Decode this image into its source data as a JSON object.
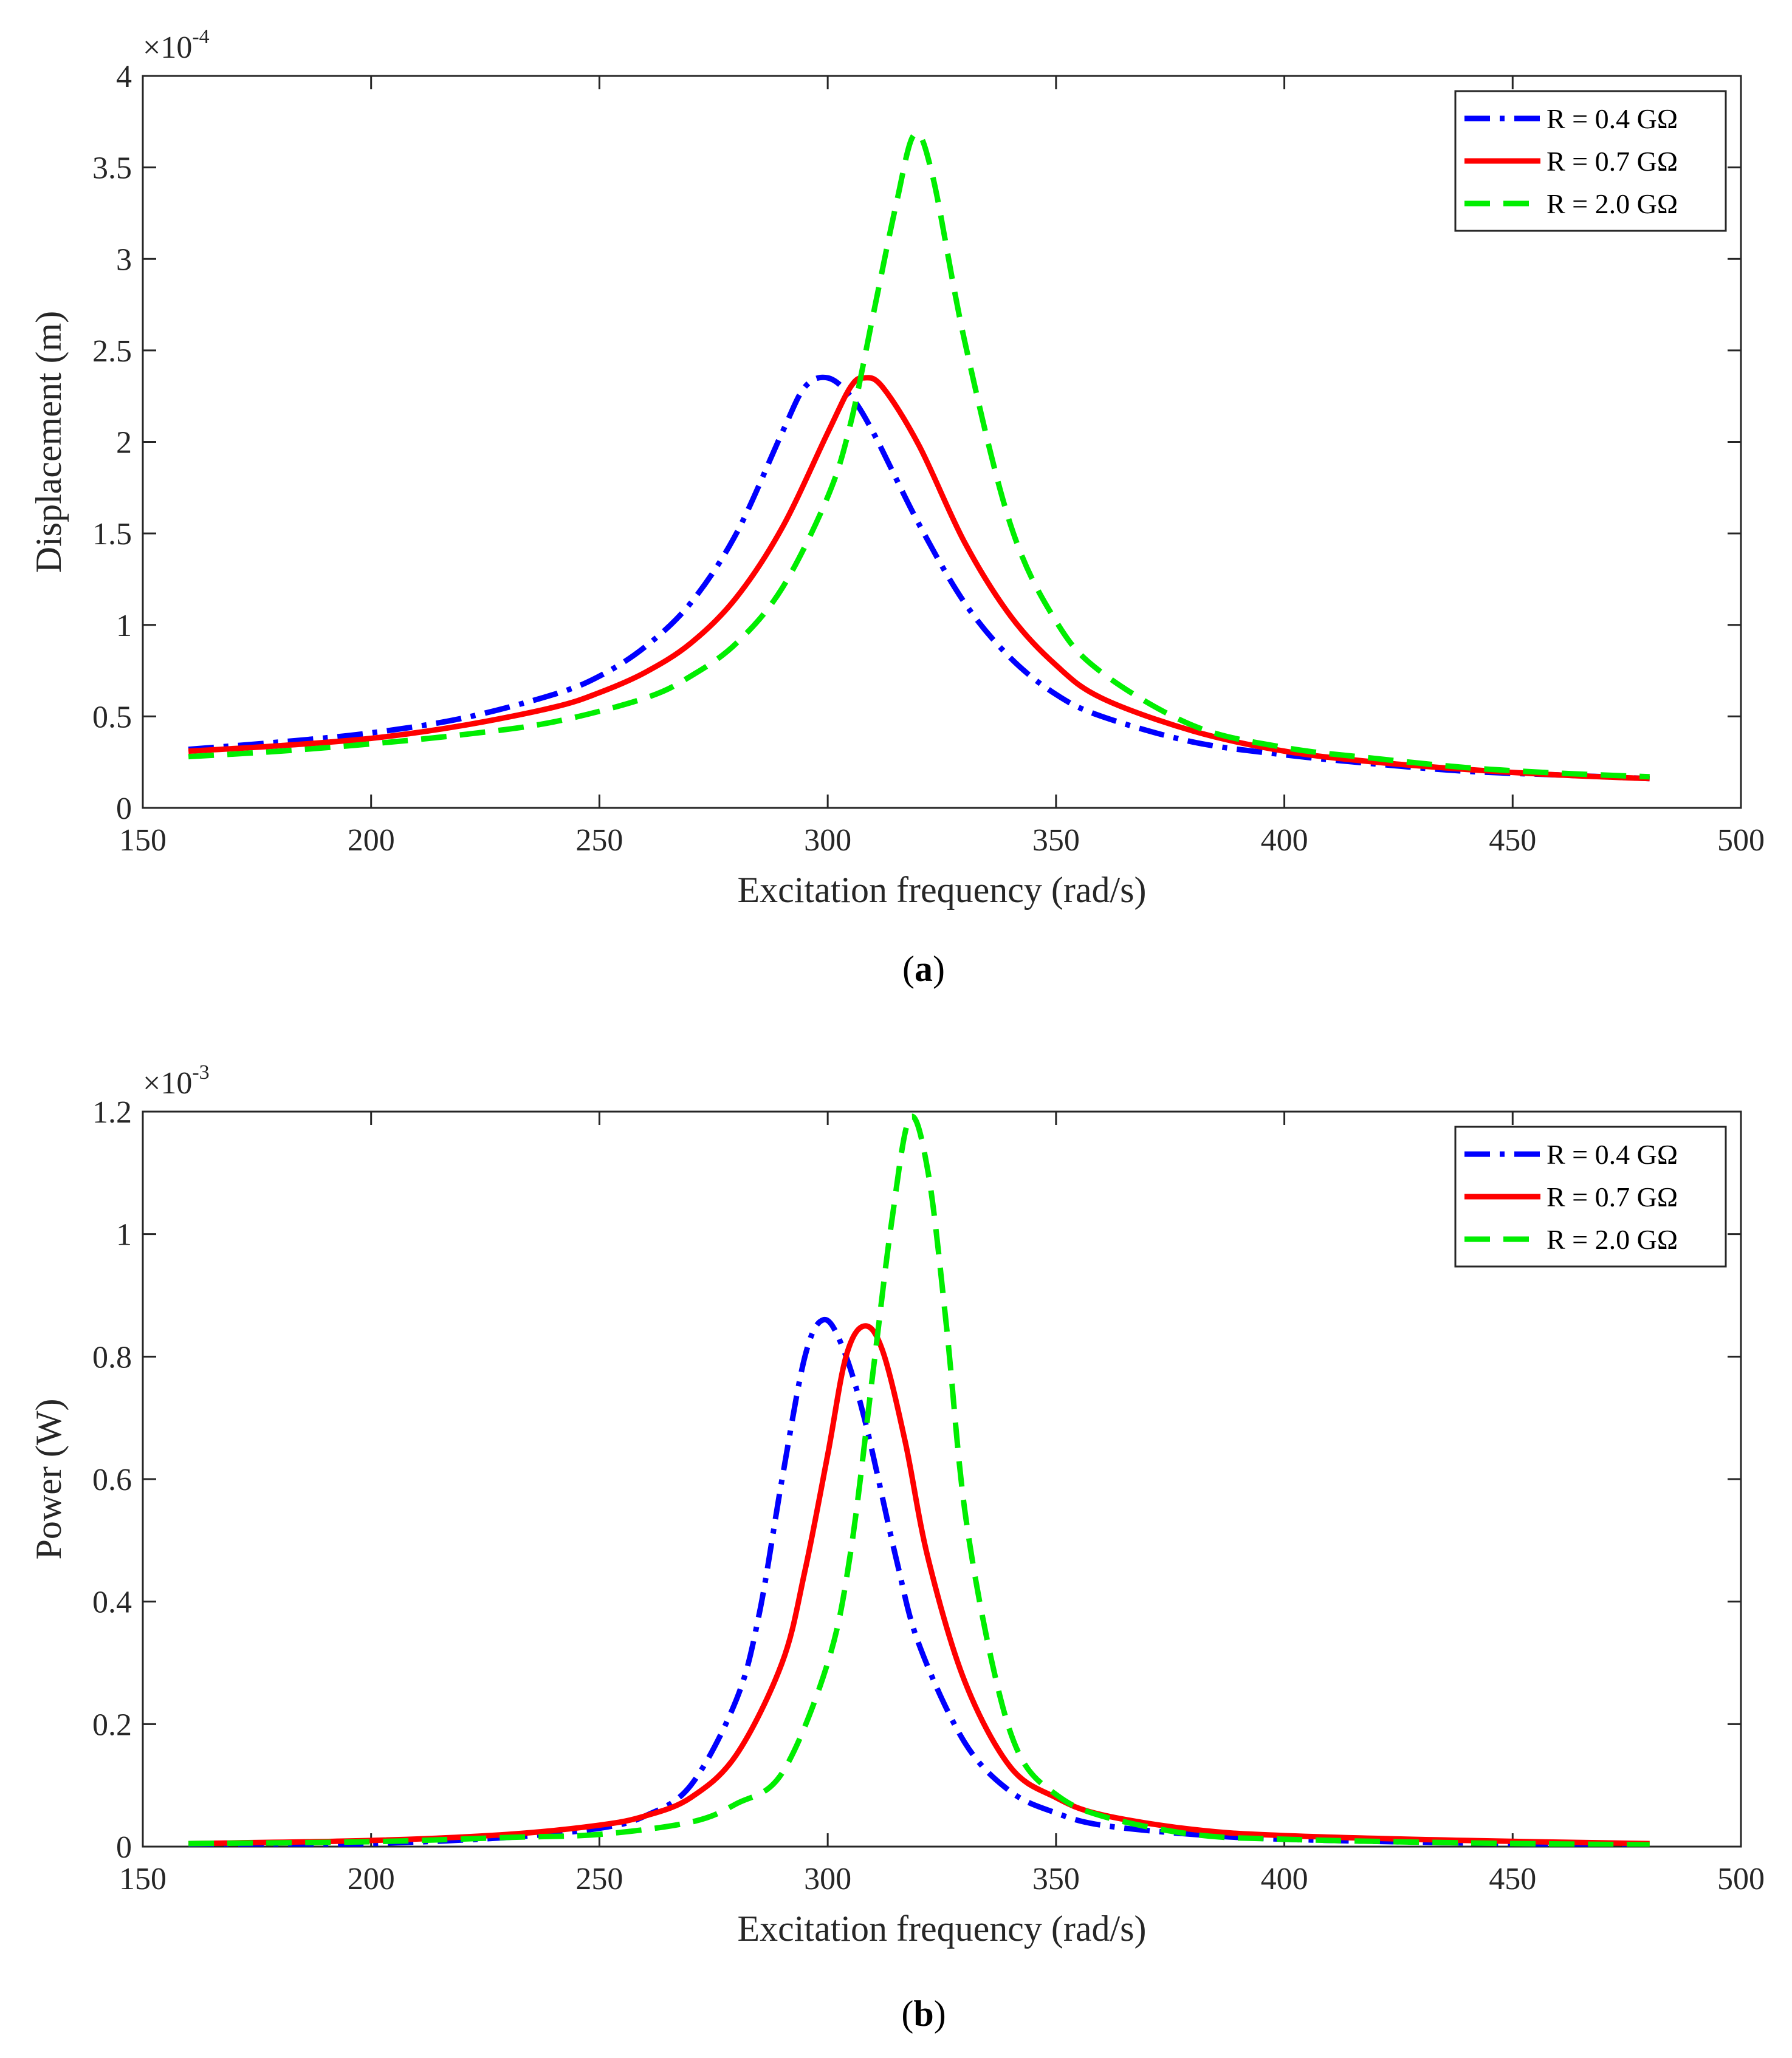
{
  "chart_data": [
    {
      "type": "line",
      "panel_label": "a",
      "xlabel": "Excitation frequency (rad/s)",
      "ylabel": "Displacement (m)",
      "exponent_base": "×10",
      "exponent_power": "-4",
      "xlim": [
        150,
        500
      ],
      "ylim": [
        0,
        4
      ],
      "x_ticks": [
        "150",
        "200",
        "250",
        "300",
        "350",
        "400",
        "450",
        "500"
      ],
      "y_ticks": [
        "0",
        "0.5",
        "1",
        "1.5",
        "2",
        "2.5",
        "3",
        "3.5",
        "4"
      ],
      "legend_position": "top-right",
      "grid": false,
      "series": [
        {
          "name": "R = 0.4 GΩ",
          "color": "#0000ff",
          "dash": "dashdot",
          "x": [
            160,
            180,
            200,
            220,
            240,
            250,
            260,
            270,
            280,
            290,
            295,
            300,
            305,
            310,
            320,
            330,
            340,
            350,
            360,
            380,
            400,
            420,
            440,
            460,
            480
          ],
          "y": [
            0.32,
            0.36,
            0.41,
            0.49,
            0.62,
            0.72,
            0.88,
            1.12,
            1.5,
            2.05,
            2.3,
            2.35,
            2.25,
            2.05,
            1.55,
            1.12,
            0.82,
            0.62,
            0.5,
            0.36,
            0.29,
            0.24,
            0.2,
            0.18,
            0.16
          ]
        },
        {
          "name": "R = 0.7 GΩ",
          "color": "#ff0000",
          "dash": "solid",
          "x": [
            160,
            180,
            200,
            220,
            240,
            250,
            260,
            270,
            280,
            290,
            300,
            305,
            308,
            312,
            320,
            330,
            340,
            350,
            360,
            380,
            400,
            420,
            440,
            460,
            480
          ],
          "y": [
            0.31,
            0.34,
            0.38,
            0.45,
            0.55,
            0.63,
            0.74,
            0.9,
            1.15,
            1.53,
            2.05,
            2.3,
            2.35,
            2.3,
            1.98,
            1.45,
            1.05,
            0.78,
            0.6,
            0.42,
            0.31,
            0.25,
            0.21,
            0.18,
            0.16
          ]
        },
        {
          "name": "R = 2.0 GΩ",
          "color": "#00ee00",
          "dash": "dashed",
          "x": [
            160,
            180,
            200,
            220,
            240,
            260,
            270,
            280,
            290,
            300,
            305,
            310,
            315,
            319,
            323,
            330,
            340,
            350,
            360,
            380,
            400,
            420,
            440,
            460,
            480
          ],
          "y": [
            0.28,
            0.31,
            0.35,
            0.4,
            0.47,
            0.6,
            0.72,
            0.9,
            1.2,
            1.7,
            2.1,
            2.7,
            3.3,
            3.68,
            3.45,
            2.55,
            1.55,
            1.02,
            0.74,
            0.45,
            0.33,
            0.27,
            0.22,
            0.19,
            0.17
          ]
        }
      ]
    },
    {
      "type": "line",
      "panel_label": "b",
      "xlabel": "Excitation frequency (rad/s)",
      "ylabel": "Power (W)",
      "exponent_base": "×10",
      "exponent_power": "-3",
      "xlim": [
        150,
        500
      ],
      "ylim": [
        0,
        1.2
      ],
      "x_ticks": [
        "150",
        "200",
        "250",
        "300",
        "350",
        "400",
        "450",
        "500"
      ],
      "y_ticks": [
        "0",
        "0.2",
        "0.4",
        "0.6",
        "0.8",
        "1",
        "1.2"
      ],
      "legend_position": "top-right",
      "grid": false,
      "series": [
        {
          "name": "R = 0.4 GΩ",
          "color": "#0000ff",
          "dash": "dashdot",
          "x": [
            160,
            200,
            230,
            250,
            260,
            270,
            280,
            285,
            290,
            295,
            299,
            303,
            308,
            315,
            320,
            330,
            340,
            350,
            360,
            380,
            400,
            440,
            480
          ],
          "y": [
            0.0,
            0.005,
            0.015,
            0.03,
            0.05,
            0.1,
            0.24,
            0.38,
            0.6,
            0.8,
            0.86,
            0.82,
            0.7,
            0.47,
            0.33,
            0.17,
            0.09,
            0.055,
            0.035,
            0.02,
            0.012,
            0.006,
            0.003
          ]
        },
        {
          "name": "R = 0.7 GΩ",
          "color": "#ff0000",
          "dash": "solid",
          "x": [
            160,
            200,
            230,
            250,
            260,
            270,
            280,
            290,
            295,
            300,
            304,
            308,
            312,
            317,
            322,
            330,
            340,
            350,
            360,
            380,
            400,
            440,
            480
          ],
          "y": [
            0.005,
            0.01,
            0.02,
            0.035,
            0.05,
            0.08,
            0.15,
            0.3,
            0.45,
            0.64,
            0.8,
            0.85,
            0.81,
            0.66,
            0.47,
            0.27,
            0.13,
            0.08,
            0.052,
            0.028,
            0.018,
            0.01,
            0.005
          ]
        },
        {
          "name": "R = 2.0 GΩ",
          "color": "#00ee00",
          "dash": "dashed",
          "x": [
            160,
            200,
            230,
            250,
            270,
            280,
            290,
            300,
            305,
            310,
            314,
            318,
            322,
            326,
            330,
            336,
            342,
            350,
            360,
            380,
            400,
            440,
            480
          ],
          "y": [
            0.005,
            0.008,
            0.015,
            0.02,
            0.04,
            0.07,
            0.12,
            0.3,
            0.48,
            0.78,
            1.02,
            1.19,
            1.1,
            0.85,
            0.55,
            0.3,
            0.15,
            0.085,
            0.05,
            0.02,
            0.012,
            0.006,
            0.003
          ]
        }
      ]
    }
  ]
}
